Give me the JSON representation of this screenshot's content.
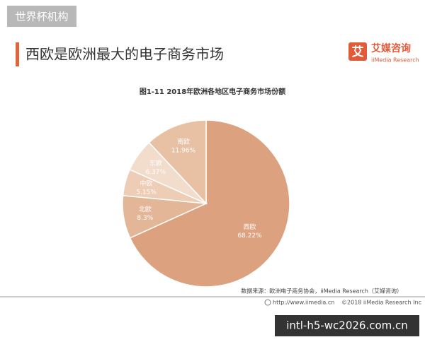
{
  "badge": "世界杯机构",
  "heading": "西欧是欧洲最大的电子商务市场",
  "logo": {
    "mark": "艾",
    "name": "艾媒咨询",
    "sub": "iiMedia Research"
  },
  "source": "数据来源：欧洲电子商务协会，iiMedia Research（艾媒咨询）",
  "footer": {
    "url": "http://www.iimedia.cn",
    "copyright": "©2018  iiMedia Research  Inc"
  },
  "watermark": "intl-h5-wc2026.com.cn",
  "chart_data": {
    "type": "pie",
    "title": "图1-11  2018年欧洲各地区电子商务市场份额",
    "categories": [
      "西欧",
      "北欧",
      "中欧",
      "东欧",
      "南欧"
    ],
    "values": [
      68.22,
      8.3,
      5.15,
      6.37,
      11.96
    ],
    "value_labels": [
      "68.22%",
      "8.3%",
      "5.15%",
      "6.37%",
      "11.96%"
    ],
    "colors": [
      "#dca17f",
      "#e3b697",
      "#edcdb6",
      "#f2dccc",
      "#e8c1a5"
    ]
  }
}
